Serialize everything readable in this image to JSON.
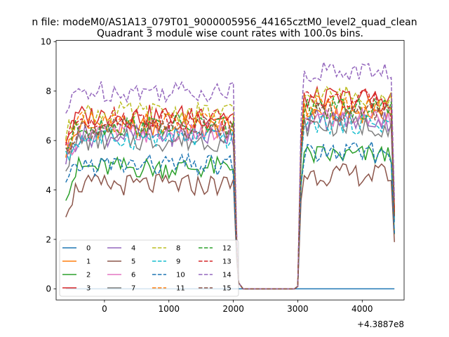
{
  "chart_data": {
    "type": "line",
    "suptitle": "n file: modeM0/AS1A13_079T01_9000005956_44165cztM0_level2_quad_clean",
    "title": "Quadrant 3 module wise count rates with 100.0s bins.",
    "xlabel": "",
    "ylabel": "",
    "offset_text": "+4.3887e8",
    "xlim": [
      -750,
      4650
    ],
    "ylim": [
      -0.45,
      10.05
    ],
    "x_ticks": [
      0,
      1000,
      2000,
      3000,
      4000
    ],
    "y_ticks": [
      0,
      2,
      4,
      6,
      8,
      10
    ],
    "x_tick_labels": [
      "0",
      "1000",
      "2000",
      "3000",
      "4000"
    ],
    "y_tick_labels": [
      "0",
      "2",
      "4",
      "6",
      "8",
      "10"
    ],
    "grid": false,
    "legend_position": "lower-left",
    "legend_columns": 4,
    "segments": {
      "on1": [
        -600,
        2000
      ],
      "gap": [
        2060,
        2980
      ],
      "on2": [
        3000,
        4500
      ],
      "step": 50
    },
    "series": [
      {
        "name": "0",
        "color": "#1f77b4",
        "dash": "solid",
        "level": 0.0
      },
      {
        "name": "1",
        "color": "#ff7f0e",
        "dash": "solid",
        "level": 6.5
      },
      {
        "name": "2",
        "color": "#2ca02c",
        "dash": "solid",
        "level": 4.9
      },
      {
        "name": "3",
        "color": "#d62728",
        "dash": "solid",
        "level": 7.0
      },
      {
        "name": "4",
        "color": "#9467bd",
        "dash": "solid",
        "level": 6.2
      },
      {
        "name": "5",
        "color": "#8c564b",
        "dash": "solid",
        "level": 4.2
      },
      {
        "name": "6",
        "color": "#e377c2",
        "dash": "solid",
        "level": 6.3
      },
      {
        "name": "7",
        "color": "#7f7f7f",
        "dash": "solid",
        "level": 6.0
      },
      {
        "name": "8",
        "color": "#bcbd22",
        "dash": "dashed",
        "level": 7.1
      },
      {
        "name": "9",
        "color": "#17becf",
        "dash": "dashed",
        "level": 6.1
      },
      {
        "name": "10",
        "color": "#1f77b4",
        "dash": "dashed",
        "level": 5.0
      },
      {
        "name": "11",
        "color": "#ff7f0e",
        "dash": "dashed",
        "level": 6.7
      },
      {
        "name": "12",
        "color": "#2ca02c",
        "dash": "dashed",
        "level": 6.6
      },
      {
        "name": "13",
        "color": "#d62728",
        "dash": "dashed",
        "level": 6.9
      },
      {
        "name": "14",
        "color": "#9467bd",
        "dash": "dashed",
        "level": 8.0
      },
      {
        "name": "15",
        "color": "#8c564b",
        "dash": "dashed",
        "level": 6.5
      }
    ]
  }
}
